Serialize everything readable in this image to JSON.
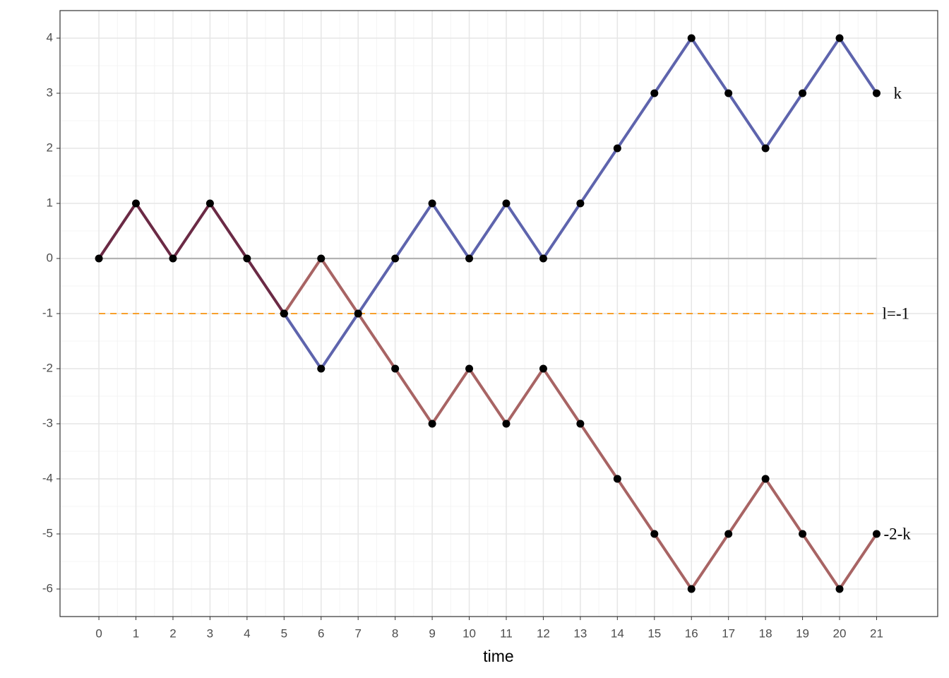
{
  "chart_data": {
    "type": "line",
    "x_label": "time",
    "x": [
      0,
      1,
      2,
      3,
      4,
      5,
      6,
      7,
      8,
      9,
      10,
      11,
      12,
      13,
      14,
      15,
      16,
      17,
      18,
      19,
      20,
      21
    ],
    "series": [
      {
        "color": "#6b2a45",
        "values": [
          0,
          1,
          0,
          1,
          0,
          -1,
          null,
          null,
          null,
          null,
          null,
          null,
          null,
          null,
          null,
          null,
          null,
          null,
          null,
          null,
          null,
          null
        ]
      },
      {
        "name": "k",
        "color": "#5e64ad",
        "values": [
          null,
          null,
          null,
          null,
          null,
          -1,
          -2,
          -1,
          0,
          1,
          0,
          1,
          0,
          1,
          2,
          3,
          4,
          3,
          2,
          3,
          4,
          3
        ]
      },
      {
        "name": "-2-k",
        "color": "#a86464",
        "values": [
          null,
          null,
          null,
          null,
          null,
          -1,
          0,
          -1,
          -2,
          -3,
          -2,
          -3,
          -2,
          -3,
          -4,
          -5,
          -6,
          -5,
          -4,
          -5,
          -6,
          -5
        ]
      }
    ],
    "reference_lines": [
      {
        "value": 0,
        "color": "#b3b3b3"
      },
      {
        "value": -1,
        "color": "#f7a02c",
        "dashed": true,
        "label": "l=-1"
      }
    ],
    "point_color": "#000000",
    "xlim": [
      -1.05,
      22.65
    ],
    "ylim": [
      -6.5,
      4.5
    ],
    "xticks": [
      0,
      1,
      2,
      3,
      4,
      5,
      6,
      7,
      8,
      9,
      10,
      11,
      12,
      13,
      14,
      15,
      16,
      17,
      18,
      19,
      20,
      21
    ],
    "yticks": [
      -6,
      -5,
      -4,
      -3,
      -2,
      -1,
      0,
      1,
      2,
      3,
      4
    ],
    "grid": true
  }
}
